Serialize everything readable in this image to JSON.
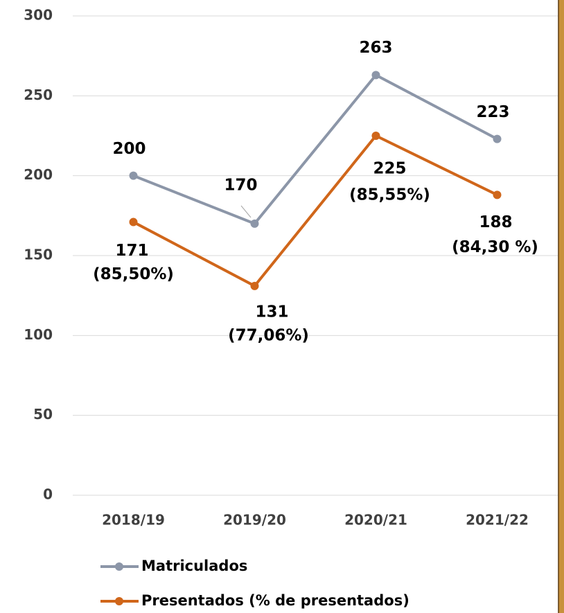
{
  "chart_data": {
    "type": "line",
    "categories": [
      "2018/19",
      "2019/20",
      "2020/21",
      "2021/22"
    ],
    "series": [
      {
        "name": "Matriculados",
        "color": "#8c96a8",
        "values": [
          200,
          170,
          263,
          223
        ]
      },
      {
        "name": "Presentados (% de presentados)",
        "color": "#d0661a",
        "values": [
          171,
          131,
          225,
          188
        ],
        "value_labels": [
          [
            "171",
            "(85,50%)"
          ],
          [
            "131",
            "(77,06%)"
          ],
          [
            "225",
            "(85,55%)"
          ],
          [
            "188",
            "(84,30 %)"
          ]
        ]
      }
    ],
    "ylim": [
      0,
      300
    ],
    "yticks": [
      0,
      50,
      100,
      150,
      200,
      250,
      300
    ],
    "grid": true,
    "legend": "bottom"
  }
}
